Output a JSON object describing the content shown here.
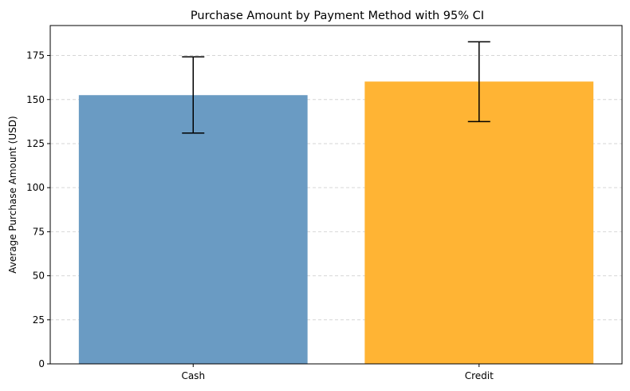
{
  "chart_data": {
    "type": "bar",
    "title": "Purchase Amount by Payment Method with 95% CI",
    "xlabel": "",
    "ylabel": "Average Purchase Amount (USD)",
    "categories": [
      "Cash",
      "Credit"
    ],
    "values": [
      152.5,
      160.2
    ],
    "ci_lower": [
      131.0,
      137.5
    ],
    "ci_upper": [
      174.2,
      182.8
    ],
    "colors": [
      "#6a9bc3",
      "#ffb434"
    ],
    "ylim": [
      0,
      192
    ],
    "yticks": [
      0,
      25,
      50,
      75,
      100,
      125,
      150,
      175
    ],
    "grid": "horizontal dashed",
    "legend": "none"
  }
}
